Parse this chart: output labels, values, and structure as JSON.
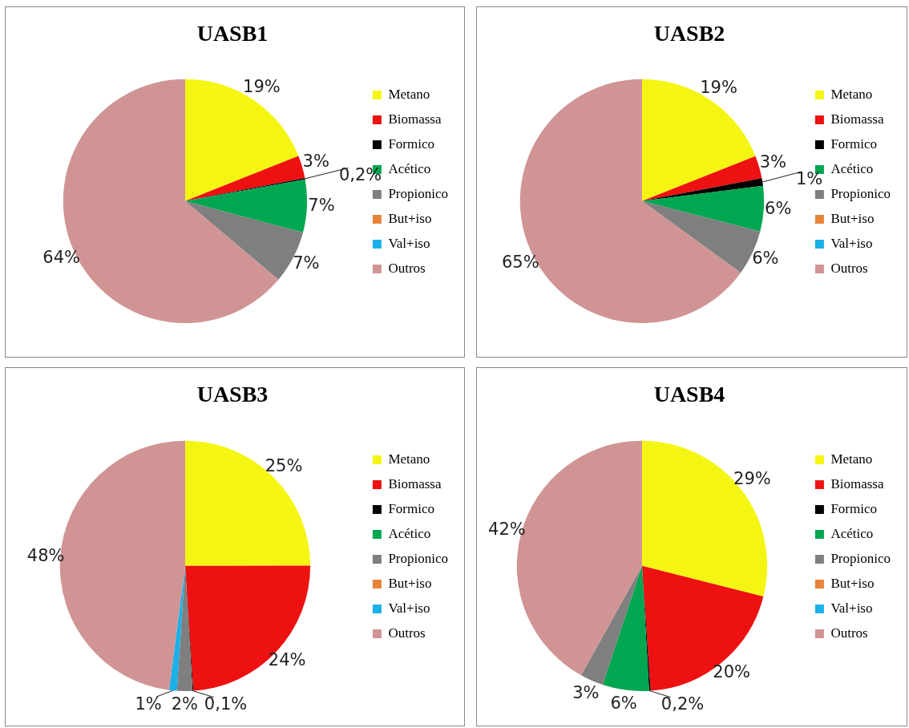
{
  "chart_data": [
    {
      "type": "pie",
      "title": "UASB1",
      "categories": [
        "Metano",
        "Biomassa",
        "Formico",
        "Acético",
        "Propionico",
        "But+iso",
        "Val+iso",
        "Outros"
      ],
      "values": [
        19,
        3,
        0.2,
        7,
        7,
        0,
        0,
        64
      ],
      "colors": [
        "#f5f514",
        "#ee1111",
        "#000000",
        "#00a650",
        "#7f7f7f",
        "#e8833a",
        "#1ab0e8",
        "#d09494"
      ],
      "value_labels": [
        "19%",
        "3%",
        "0,2%",
        "7%",
        "7%",
        null,
        null,
        "64%"
      ],
      "legend": "right"
    },
    {
      "type": "pie",
      "title": "UASB2",
      "categories": [
        "Metano",
        "Biomassa",
        "Formico",
        "Acético",
        "Propionico",
        "But+iso",
        "Val+iso",
        "Outros"
      ],
      "values": [
        19,
        3,
        1,
        6,
        6,
        0,
        0,
        65
      ],
      "colors": [
        "#f5f514",
        "#ee1111",
        "#000000",
        "#00a650",
        "#7f7f7f",
        "#e8833a",
        "#1ab0e8",
        "#d09494"
      ],
      "value_labels": [
        "19%",
        "3%",
        "1%",
        "6%",
        "6%",
        null,
        null,
        "65%"
      ],
      "legend": "right"
    },
    {
      "type": "pie",
      "title": "UASB3",
      "categories": [
        "Metano",
        "Biomassa",
        "Formico",
        "Acético",
        "Propionico",
        "But+iso",
        "Val+iso",
        "Outros"
      ],
      "values": [
        25,
        24,
        0.1,
        0,
        2,
        0,
        1,
        48
      ],
      "colors": [
        "#f5f514",
        "#ee1111",
        "#000000",
        "#00a650",
        "#7f7f7f",
        "#e8833a",
        "#1ab0e8",
        "#d09494"
      ],
      "value_labels": [
        "25%",
        "24%",
        "0,1%",
        null,
        "2%",
        null,
        "1%",
        "48%"
      ],
      "legend": "right"
    },
    {
      "type": "pie",
      "title": "UASB4",
      "categories": [
        "Metano",
        "Biomassa",
        "Formico",
        "Acético",
        "Propionico",
        "But+iso",
        "Val+iso",
        "Outros"
      ],
      "values": [
        29,
        20,
        0.2,
        6,
        3,
        0,
        0,
        42
      ],
      "colors": [
        "#f5f514",
        "#ee1111",
        "#000000",
        "#00a650",
        "#7f7f7f",
        "#e8833a",
        "#1ab0e8",
        "#d09494"
      ],
      "value_labels": [
        "29%",
        "20%",
        "0,2%",
        "6%",
        "3%",
        null,
        null,
        "42%"
      ],
      "legend": "right"
    }
  ]
}
